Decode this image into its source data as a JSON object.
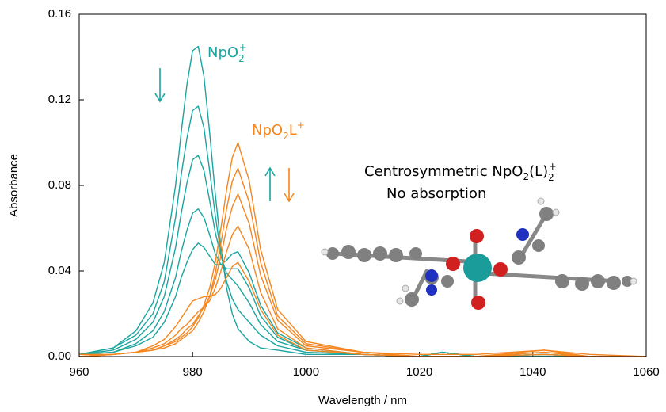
{
  "chart_data": {
    "type": "line",
    "x_label": "Wavelength / nm",
    "y_label": "Absorbance",
    "x": [
      960,
      966,
      970,
      973,
      975,
      977,
      978,
      979,
      980,
      981,
      982,
      983,
      984,
      985,
      986,
      987,
      988,
      990,
      992,
      995,
      1000,
      1010,
      1020,
      1024,
      1030,
      1042,
      1050,
      1060
    ],
    "xlim": [
      960,
      1060
    ],
    "xticks": [
      960,
      980,
      1000,
      1020,
      1040,
      1060
    ],
    "ylim": [
      0,
      0.16
    ],
    "yticks": [
      {
        "value": 0,
        "label": "0.00"
      },
      {
        "value": 0.04,
        "label": "0.04"
      },
      {
        "value": 0.08,
        "label": "0.08"
      },
      {
        "value": 0.12,
        "label": "0.12"
      },
      {
        "value": 0.16,
        "label": "0.16"
      }
    ],
    "series": [
      {
        "color": "#1aa5a0",
        "values": [
          0.001,
          0.004,
          0.012,
          0.025,
          0.044,
          0.08,
          0.105,
          0.127,
          0.143,
          0.145,
          0.131,
          0.105,
          0.076,
          0.051,
          0.032,
          0.02,
          0.013,
          0.007,
          0.004,
          0.003,
          0.001,
          0.001,
          0,
          0.002,
          0,
          0,
          0,
          0
        ]
      },
      {
        "color": "#1aa5a0",
        "values": [
          0.001,
          0.004,
          0.01,
          0.02,
          0.035,
          0.065,
          0.085,
          0.102,
          0.115,
          0.117,
          0.107,
          0.087,
          0.066,
          0.048,
          0.035,
          0.027,
          0.022,
          0.016,
          0.01,
          0.005,
          0.002,
          0.001,
          0,
          0.002,
          0,
          0,
          0,
          0
        ]
      },
      {
        "color": "#1aa5a0",
        "values": [
          0.001,
          0.003,
          0.008,
          0.016,
          0.028,
          0.051,
          0.067,
          0.081,
          0.092,
          0.094,
          0.087,
          0.073,
          0.058,
          0.047,
          0.039,
          0.036,
          0.033,
          0.025,
          0.015,
          0.007,
          0.003,
          0.001,
          0,
          0.002,
          0,
          0.001,
          0,
          0
        ]
      },
      {
        "color": "#1aa5a0",
        "values": [
          0.001,
          0.002,
          0.006,
          0.012,
          0.021,
          0.037,
          0.049,
          0.059,
          0.067,
          0.069,
          0.065,
          0.057,
          0.048,
          0.043,
          0.041,
          0.041,
          0.041,
          0.032,
          0.019,
          0.009,
          0.003,
          0.001,
          0,
          0.002,
          0,
          0.001,
          0,
          0
        ]
      },
      {
        "color": "#1aa5a0",
        "values": [
          0.001,
          0.002,
          0.005,
          0.009,
          0.016,
          0.028,
          0.037,
          0.044,
          0.05,
          0.053,
          0.051,
          0.047,
          0.043,
          0.043,
          0.045,
          0.048,
          0.049,
          0.039,
          0.024,
          0.011,
          0.004,
          0.001,
          0,
          0.002,
          0,
          0.001,
          0,
          0
        ]
      },
      {
        "color": "#f5861f",
        "values": [
          0,
          0.001,
          0.002,
          0.005,
          0.008,
          0.014,
          0.018,
          0.022,
          0.026,
          0.027,
          0.028,
          0.028,
          0.029,
          0.032,
          0.037,
          0.042,
          0.044,
          0.035,
          0.022,
          0.01,
          0.003,
          0.001,
          0,
          0,
          0,
          0.001,
          0,
          0
        ]
      },
      {
        "color": "#f5861f",
        "values": [
          0,
          0.001,
          0.002,
          0.004,
          0.006,
          0.01,
          0.013,
          0.015,
          0.018,
          0.021,
          0.023,
          0.026,
          0.032,
          0.04,
          0.049,
          0.057,
          0.061,
          0.05,
          0.03,
          0.013,
          0.004,
          0.001,
          0,
          0,
          0,
          0.002,
          0,
          0
        ]
      },
      {
        "color": "#f5861f",
        "values": [
          0,
          0.001,
          0.002,
          0.003,
          0.005,
          0.008,
          0.01,
          0.013,
          0.015,
          0.019,
          0.023,
          0.028,
          0.036,
          0.047,
          0.06,
          0.07,
          0.076,
          0.062,
          0.038,
          0.017,
          0.005,
          0.002,
          0,
          0,
          0,
          0.002,
          0,
          0
        ]
      },
      {
        "color": "#f5861f",
        "values": [
          0,
          0.001,
          0.002,
          0.003,
          0.004,
          0.006,
          0.008,
          0.01,
          0.012,
          0.016,
          0.021,
          0.028,
          0.039,
          0.053,
          0.069,
          0.082,
          0.088,
          0.072,
          0.044,
          0.019,
          0.006,
          0.002,
          0,
          0,
          0,
          0.003,
          0,
          0
        ]
      },
      {
        "color": "#f5861f",
        "values": [
          0.001,
          0.001,
          0.002,
          0.003,
          0.005,
          0.007,
          0.009,
          0.011,
          0.014,
          0.018,
          0.024,
          0.032,
          0.044,
          0.06,
          0.078,
          0.093,
          0.1,
          0.082,
          0.05,
          0.022,
          0.007,
          0.002,
          0.001,
          0.001,
          0.001,
          0.003,
          0.001,
          0
        ]
      }
    ],
    "annotations": [
      [
        "NpO",
        "2",
        "+"
      ],
      [
        "NpO",
        "2",
        "L",
        "+"
      ],
      [
        "Centrosymmetric NpO",
        "2",
        "(L)",
        "2",
        "+"
      ],
      "No absorption"
    ]
  }
}
